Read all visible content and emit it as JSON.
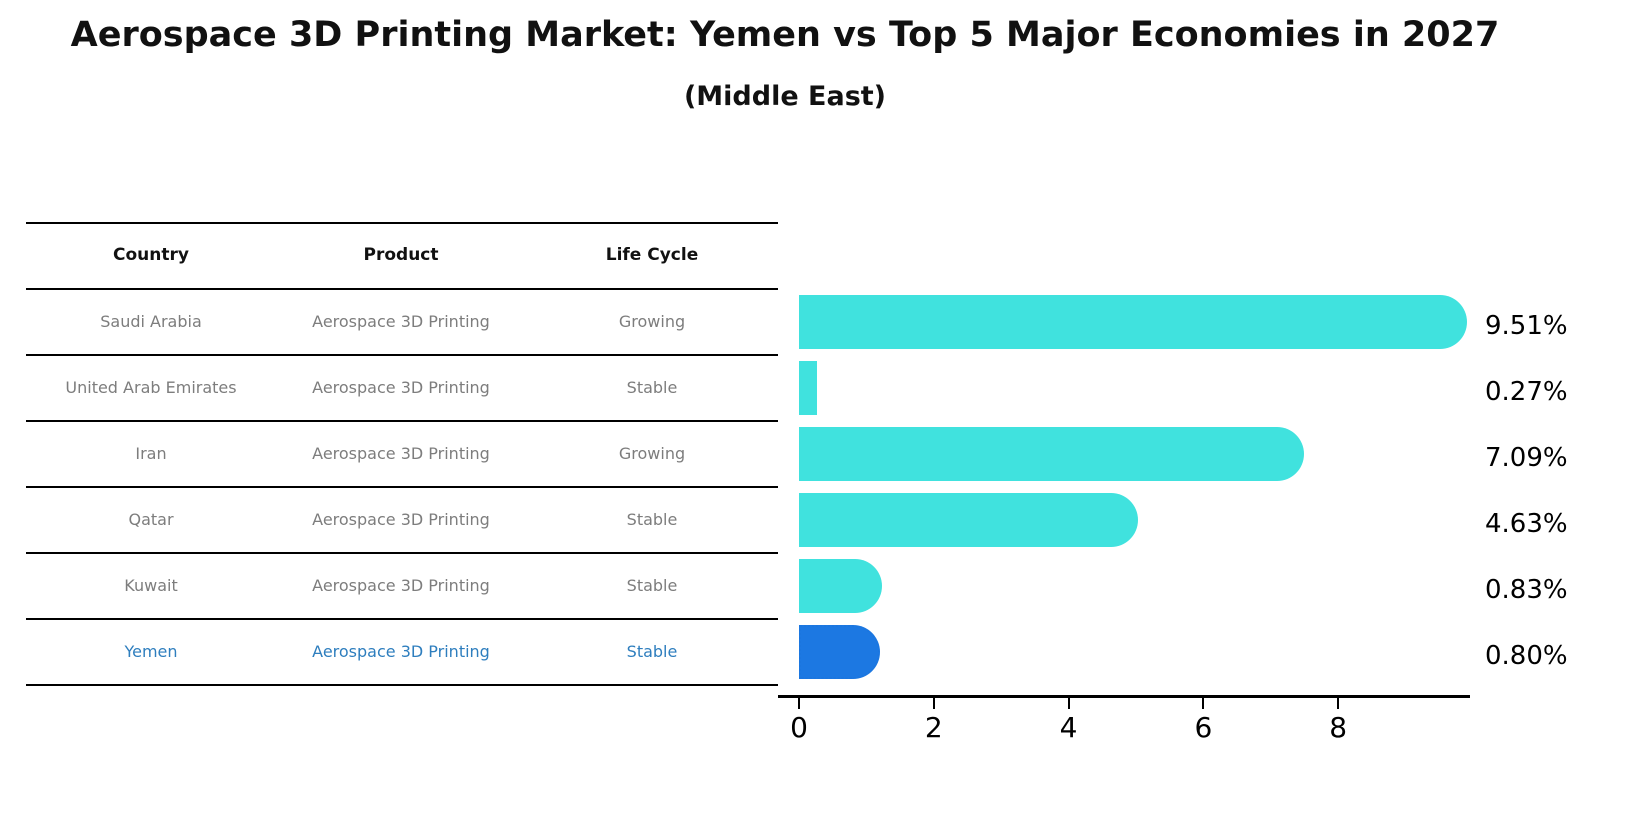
{
  "title": "Aerospace 3D Printing Market: Yemen vs Top 5 Major Economies in 2027",
  "subtitle": "(Middle East)",
  "table": {
    "headers": [
      "Country",
      "Product",
      "Life Cycle"
    ],
    "rows": [
      {
        "country": "Saudi Arabia",
        "product": "Aerospace 3D Printing",
        "life_cycle": "Growing",
        "highlight": false
      },
      {
        "country": "United Arab Emirates",
        "product": "Aerospace 3D Printing",
        "life_cycle": "Stable",
        "highlight": false
      },
      {
        "country": "Iran",
        "product": "Aerospace 3D Printing",
        "life_cycle": "Growing",
        "highlight": false
      },
      {
        "country": "Qatar",
        "product": "Aerospace 3D Printing",
        "life_cycle": "Stable",
        "highlight": false
      },
      {
        "country": "Kuwait",
        "product": "Aerospace 3D Printing",
        "life_cycle": "Stable",
        "highlight": false
      },
      {
        "country": "Yemen",
        "product": "Aerospace 3D Printing",
        "life_cycle": "Stable",
        "highlight": true
      }
    ]
  },
  "chart_data": {
    "type": "bar",
    "orientation": "horizontal",
    "title": "Aerospace 3D Printing Market: Yemen vs Top 5 Major Economies in 2027",
    "subtitle": "(Middle East)",
    "categories": [
      "Saudi Arabia",
      "United Arab Emirates",
      "Iran",
      "Qatar",
      "Kuwait",
      "Yemen"
    ],
    "values": [
      9.51,
      0.27,
      7.09,
      4.63,
      0.83,
      0.8
    ],
    "value_labels": [
      "9.51%",
      "0.27%",
      "7.09%",
      "4.63%",
      "0.83%",
      "0.80%"
    ],
    "highlight_category": "Yemen",
    "xlabel": "",
    "ylabel": "",
    "xticks": [
      "0",
      "2",
      "4",
      "6",
      "8"
    ],
    "xlim": [
      0,
      9.96
    ],
    "grid": false,
    "legend": "none",
    "colors": {
      "bar": "#40e2de",
      "highlight": "#1c78e2",
      "highlight_border": "#1b76df",
      "highlight_text": "#2e7ebe",
      "row_text": "#7d7d7d",
      "axis": "#000000"
    }
  }
}
